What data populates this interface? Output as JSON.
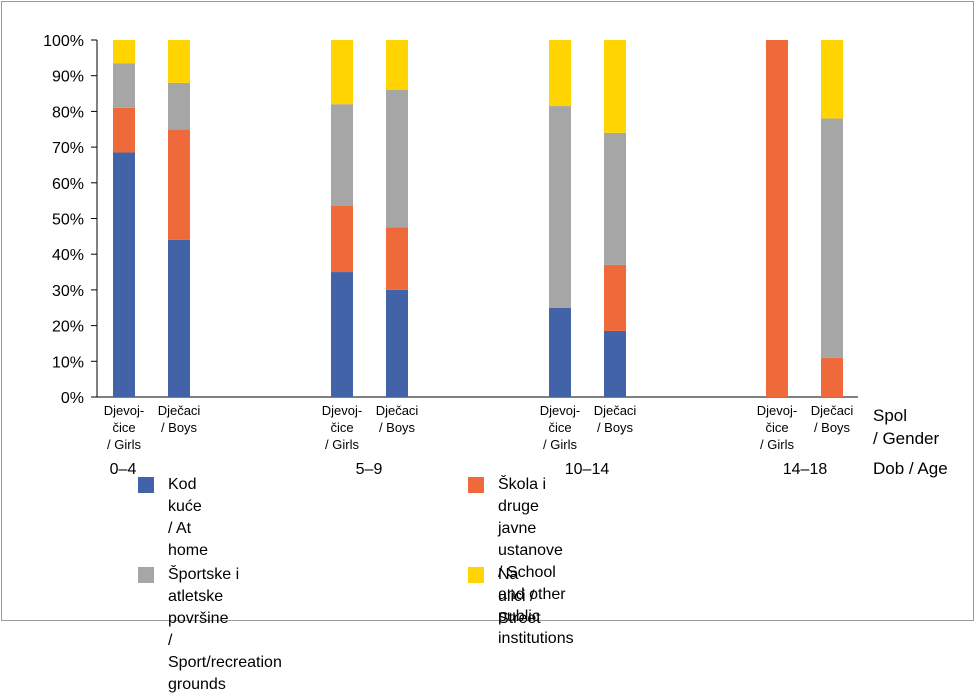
{
  "chart_data": {
    "type": "bar",
    "stacked": true,
    "ylim": [
      0,
      100
    ],
    "y_ticks": [
      "0%",
      "10%",
      "20%",
      "30%",
      "40%",
      "50%",
      "60%",
      "70%",
      "80%",
      "90%",
      "100%"
    ],
    "axis_right_labels": {
      "gender": [
        "Spol",
        "/ Gender"
      ],
      "age": "Dob / Age"
    },
    "groups": [
      {
        "age": "0–4",
        "bars": [
          {
            "gender": [
              "Djevoj-",
              "čice",
              "/ Girls"
            ],
            "values": [
              68.5,
              12.5,
              12.5,
              6.5
            ]
          },
          {
            "gender": [
              "Dječaci",
              "/ Boys"
            ],
            "values": [
              44,
              31,
              13,
              12
            ]
          }
        ]
      },
      {
        "age": "5–9",
        "bars": [
          {
            "gender": [
              "Djevoj-",
              "čice",
              "/ Girls"
            ],
            "values": [
              35,
              18.5,
              28.5,
              18
            ]
          },
          {
            "gender": [
              "Dječaci",
              "/ Boys"
            ],
            "values": [
              30,
              17.5,
              38.5,
              14
            ]
          }
        ]
      },
      {
        "age": "10–14",
        "bars": [
          {
            "gender": [
              "Djevoj-",
              "čice",
              "/ Girls"
            ],
            "values": [
              25,
              0,
              56.5,
              18.5
            ]
          },
          {
            "gender": [
              "Dječaci",
              "/ Boys"
            ],
            "values": [
              18.5,
              18.5,
              37,
              26
            ]
          }
        ]
      },
      {
        "age": "14–18",
        "bars": [
          {
            "gender": [
              "Djevoj-",
              "čice",
              "/ Girls"
            ],
            "values": [
              0,
              100,
              0,
              0
            ]
          },
          {
            "gender": [
              "Dječaci",
              "/ Boys"
            ],
            "values": [
              0,
              11,
              67,
              22
            ]
          }
        ]
      }
    ],
    "series": [
      {
        "name": "Kod kuće / At home",
        "color": "#4263a8"
      },
      {
        "name": "Škola i druge javne ustanove\n/ School and other public institutions",
        "color": "#ef6a3a"
      },
      {
        "name": "Športske i atletske površine\n/ Sport/recreation grounds",
        "color": "#a6a6a6"
      },
      {
        "name": "Na ulici / Street",
        "color": "#ffd400"
      }
    ],
    "grid": false,
    "legend_position": "bottom"
  }
}
